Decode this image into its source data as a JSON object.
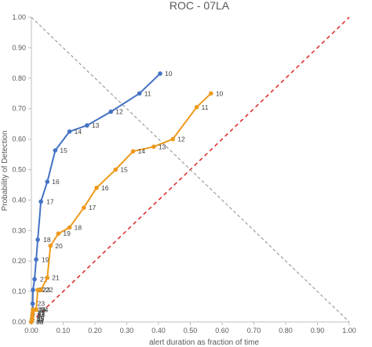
{
  "chart_data": {
    "type": "line",
    "title": "ROC - 07LA",
    "xlabel": "alert duration as fraction of time",
    "ylabel": "Probability of Detection",
    "xlim": [
      0,
      1
    ],
    "ylim": [
      0,
      1
    ],
    "x_ticks": [
      "0.00",
      "0.10",
      "0.20",
      "0.30",
      "0.40",
      "0.50",
      "0.60",
      "0.70",
      "0.80",
      "0.90",
      "1.00"
    ],
    "y_ticks": [
      "0.00",
      "0.10",
      "0.20",
      "0.30",
      "0.40",
      "0.50",
      "0.60",
      "0.70",
      "0.80",
      "0.90",
      "1.00"
    ],
    "grid": false,
    "colors": {
      "blue": "#4472C4",
      "orange": "#ED9A1C",
      "diagonal": "#E03030",
      "anti_diagonal": "#9E9E9E",
      "axis": "#BFBFBF"
    },
    "series": [
      {
        "color": "#4472C4",
        "points": [
          {
            "x": 0.0,
            "y": 0.0,
            "label": "38"
          },
          {
            "x": 0.001,
            "y": 0.005,
            "label": "37"
          },
          {
            "x": 0.002,
            "y": 0.01,
            "label": "35"
          },
          {
            "x": 0.003,
            "y": 0.02,
            "label": "34"
          },
          {
            "x": 0.004,
            "y": 0.025,
            "label": "33"
          },
          {
            "x": 0.005,
            "y": 0.04,
            "label": "30"
          },
          {
            "x": 0.004,
            "y": 0.06,
            "label": "23"
          },
          {
            "x": 0.005,
            "y": 0.105,
            "label": "22"
          },
          {
            "x": 0.01,
            "y": 0.14,
            "label": "21"
          },
          {
            "x": 0.015,
            "y": 0.205,
            "label": "19"
          },
          {
            "x": 0.02,
            "y": 0.27,
            "label": "18"
          },
          {
            "x": 0.03,
            "y": 0.395,
            "label": "17"
          },
          {
            "x": 0.05,
            "y": 0.46,
            "label": "16"
          },
          {
            "x": 0.075,
            "y": 0.563,
            "label": "15"
          },
          {
            "x": 0.12,
            "y": 0.625,
            "label": "14"
          },
          {
            "x": 0.175,
            "y": 0.645,
            "label": "13"
          },
          {
            "x": 0.25,
            "y": 0.69,
            "label": "12"
          },
          {
            "x": 0.34,
            "y": 0.75,
            "label": "11"
          },
          {
            "x": 0.405,
            "y": 0.815,
            "label": "10"
          }
        ]
      },
      {
        "color": "#ED9A1C",
        "points": [
          {
            "x": 0.0,
            "y": 0.0,
            "label": "38"
          },
          {
            "x": 0.001,
            "y": 0.005,
            "label": "37"
          },
          {
            "x": 0.002,
            "y": 0.01,
            "label": "35"
          },
          {
            "x": 0.003,
            "y": 0.02,
            "label": "34"
          },
          {
            "x": 0.004,
            "y": 0.03,
            "label": "33"
          },
          {
            "x": 0.005,
            "y": 0.04,
            "label": "30"
          },
          {
            "x": 0.01,
            "y": 0.04,
            "label": "25"
          },
          {
            "x": 0.015,
            "y": 0.04,
            "label": "24"
          },
          {
            "x": 0.02,
            "y": 0.105,
            "label": "23"
          },
          {
            "x": 0.03,
            "y": 0.105,
            "label": "22"
          },
          {
            "x": 0.05,
            "y": 0.145,
            "label": "21"
          },
          {
            "x": 0.06,
            "y": 0.25,
            "label": "20"
          },
          {
            "x": 0.085,
            "y": 0.29,
            "label": "19"
          },
          {
            "x": 0.12,
            "y": 0.31,
            "label": "18"
          },
          {
            "x": 0.165,
            "y": 0.375,
            "label": "17"
          },
          {
            "x": 0.205,
            "y": 0.44,
            "label": "16"
          },
          {
            "x": 0.265,
            "y": 0.5,
            "label": "15"
          },
          {
            "x": 0.32,
            "y": 0.56,
            "label": "14"
          },
          {
            "x": 0.385,
            "y": 0.575,
            "label": "13"
          },
          {
            "x": 0.445,
            "y": 0.6,
            "label": "12"
          },
          {
            "x": 0.52,
            "y": 0.705,
            "label": "11"
          },
          {
            "x": 0.565,
            "y": 0.75,
            "label": "10"
          }
        ]
      }
    ],
    "reference_lines": [
      {
        "style": "dashed",
        "color": "#E03030",
        "from": [
          0,
          0
        ],
        "to": [
          1,
          1
        ]
      },
      {
        "style": "dashed",
        "color": "#9E9E9E",
        "from": [
          0,
          1
        ],
        "to": [
          1,
          0
        ]
      }
    ]
  }
}
